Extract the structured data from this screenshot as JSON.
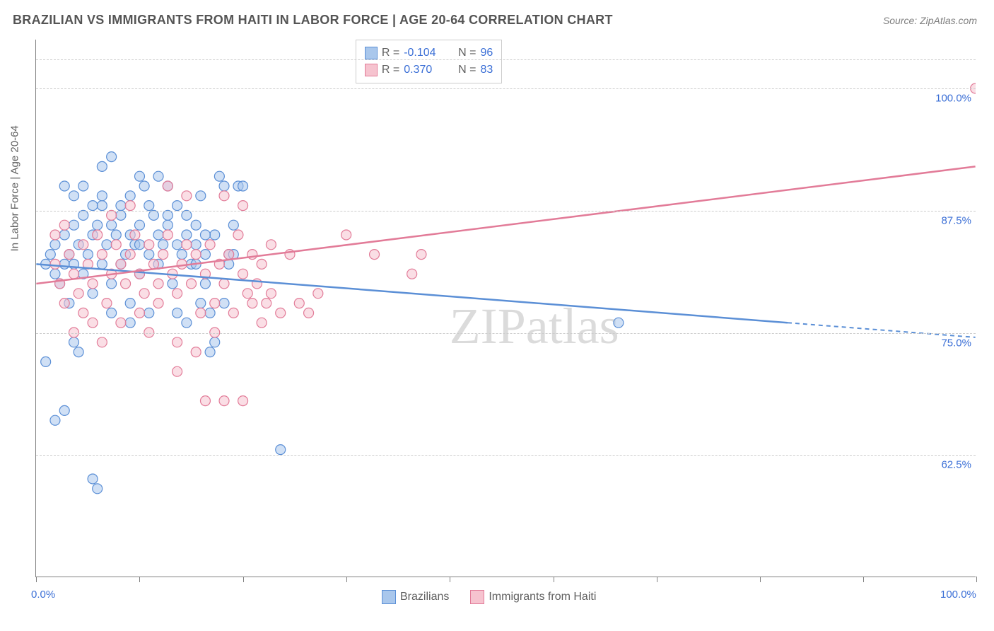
{
  "title": "BRAZILIAN VS IMMIGRANTS FROM HAITI IN LABOR FORCE | AGE 20-64 CORRELATION CHART",
  "source": "Source: ZipAtlas.com",
  "watermark": "ZIPatlas",
  "y_axis_label": "In Labor Force | Age 20-64",
  "series": [
    {
      "name": "Brazilians",
      "fill": "#a9c7ec",
      "stroke": "#5b8fd6",
      "r_value": "-0.104",
      "n_value": "96"
    },
    {
      "name": "Immigrants from Haiti",
      "fill": "#f6c3cf",
      "stroke": "#e27b98",
      "r_value": "0.370",
      "n_value": "83"
    }
  ],
  "x_range": [
    0,
    100
  ],
  "y_range": [
    50,
    105
  ],
  "y_ticks": [
    {
      "v": 62.5,
      "label": "62.5%"
    },
    {
      "v": 75.0,
      "label": "75.0%"
    },
    {
      "v": 87.5,
      "label": "87.5%"
    },
    {
      "v": 100.0,
      "label": "100.0%"
    }
  ],
  "y_grid_top": 103,
  "x_ticks_pct": [
    0,
    11,
    22,
    33,
    44,
    55,
    66,
    77,
    88,
    100
  ],
  "x_end_labels": {
    "min": "0.0%",
    "max": "100.0%"
  },
  "trend_lines": [
    {
      "series": 0,
      "x1": 0,
      "y1": 82.0,
      "x2_solid": 80,
      "y2_solid": 76.0,
      "x2": 100,
      "y2": 74.5
    },
    {
      "series": 1,
      "x1": 0,
      "y1": 80.0,
      "x2_solid": 100,
      "y2_solid": 92.0,
      "x2": 100,
      "y2": 92.0
    }
  ],
  "marker_radius": 7,
  "marker_opacity": 0.55,
  "points_blue": [
    [
      1,
      82
    ],
    [
      1.5,
      83
    ],
    [
      2,
      81
    ],
    [
      2,
      84
    ],
    [
      2.5,
      80
    ],
    [
      3,
      82
    ],
    [
      3,
      85
    ],
    [
      3.5,
      83
    ],
    [
      3.5,
      78
    ],
    [
      4,
      86
    ],
    [
      4,
      82
    ],
    [
      4.5,
      84
    ],
    [
      5,
      81
    ],
    [
      5,
      87
    ],
    [
      5.5,
      83
    ],
    [
      6,
      85
    ],
    [
      6,
      79
    ],
    [
      6.5,
      86
    ],
    [
      7,
      82
    ],
    [
      7,
      88
    ],
    [
      7.5,
      84
    ],
    [
      8,
      80
    ],
    [
      8,
      93
    ],
    [
      8.5,
      85
    ],
    [
      9,
      82
    ],
    [
      9,
      87
    ],
    [
      9.5,
      83
    ],
    [
      10,
      89
    ],
    [
      10,
      78
    ],
    [
      10.5,
      84
    ],
    [
      11,
      86
    ],
    [
      11,
      81
    ],
    [
      11.5,
      90
    ],
    [
      12,
      83
    ],
    [
      12.5,
      87
    ],
    [
      13,
      82
    ],
    [
      13,
      91
    ],
    [
      13.5,
      84
    ],
    [
      14,
      86
    ],
    [
      14.5,
      80
    ],
    [
      15,
      88
    ],
    [
      15.5,
      83
    ],
    [
      16,
      85
    ],
    [
      16.5,
      82
    ],
    [
      17,
      86
    ],
    [
      17.5,
      89
    ],
    [
      18,
      83
    ],
    [
      18.5,
      77
    ],
    [
      19,
      85
    ],
    [
      19.5,
      91
    ],
    [
      20,
      78
    ],
    [
      20.5,
      83
    ],
    [
      21,
      86
    ],
    [
      21.5,
      90
    ],
    [
      7,
      92
    ],
    [
      1,
      72
    ],
    [
      2,
      66
    ],
    [
      3,
      67
    ],
    [
      4,
      74
    ],
    [
      4.5,
      73
    ],
    [
      6,
      60
    ],
    [
      6.5,
      59
    ],
    [
      8,
      77
    ],
    [
      10,
      76
    ],
    [
      11,
      91
    ],
    [
      12,
      77
    ],
    [
      14,
      90
    ],
    [
      15,
      77
    ],
    [
      16,
      76
    ],
    [
      17,
      84
    ],
    [
      17.5,
      78
    ],
    [
      18,
      80
    ],
    [
      18.5,
      73
    ],
    [
      19,
      74
    ],
    [
      20,
      90
    ],
    [
      20.5,
      82
    ],
    [
      21,
      83
    ],
    [
      26,
      63
    ],
    [
      62,
      76
    ],
    [
      22,
      90
    ],
    [
      3,
      90
    ],
    [
      4,
      89
    ],
    [
      5,
      90
    ],
    [
      6,
      88
    ],
    [
      7,
      89
    ],
    [
      8,
      86
    ],
    [
      9,
      88
    ],
    [
      10,
      85
    ],
    [
      11,
      84
    ],
    [
      12,
      88
    ],
    [
      13,
      85
    ],
    [
      14,
      87
    ],
    [
      15,
      84
    ],
    [
      16,
      87
    ],
    [
      17,
      82
    ],
    [
      18,
      85
    ]
  ],
  "points_pink": [
    [
      2,
      82
    ],
    [
      2.5,
      80
    ],
    [
      3,
      78
    ],
    [
      3.5,
      83
    ],
    [
      4,
      81
    ],
    [
      4.5,
      79
    ],
    [
      5,
      84
    ],
    [
      5.5,
      82
    ],
    [
      6,
      80
    ],
    [
      6.5,
      85
    ],
    [
      7,
      83
    ],
    [
      7.5,
      78
    ],
    [
      8,
      81
    ],
    [
      8.5,
      84
    ],
    [
      9,
      82
    ],
    [
      9.5,
      80
    ],
    [
      10,
      83
    ],
    [
      10.5,
      85
    ],
    [
      11,
      81
    ],
    [
      11.5,
      79
    ],
    [
      12,
      84
    ],
    [
      12.5,
      82
    ],
    [
      13,
      80
    ],
    [
      13.5,
      83
    ],
    [
      14,
      85
    ],
    [
      14.5,
      81
    ],
    [
      15,
      79
    ],
    [
      15.5,
      82
    ],
    [
      16,
      84
    ],
    [
      16.5,
      80
    ],
    [
      17,
      83
    ],
    [
      17.5,
      77
    ],
    [
      18,
      81
    ],
    [
      18.5,
      84
    ],
    [
      19,
      78
    ],
    [
      19.5,
      82
    ],
    [
      20,
      80
    ],
    [
      20.5,
      83
    ],
    [
      21,
      77
    ],
    [
      21.5,
      85
    ],
    [
      22,
      81
    ],
    [
      22.5,
      79
    ],
    [
      23,
      83
    ],
    [
      23.5,
      80
    ],
    [
      24,
      82
    ],
    [
      24.5,
      78
    ],
    [
      25,
      84
    ],
    [
      14,
      90
    ],
    [
      15,
      71
    ],
    [
      16,
      89
    ],
    [
      10,
      88
    ],
    [
      11,
      77
    ],
    [
      12,
      75
    ],
    [
      13,
      78
    ],
    [
      8,
      87
    ],
    [
      9,
      76
    ],
    [
      7,
      74
    ],
    [
      6,
      76
    ],
    [
      5,
      77
    ],
    [
      4,
      75
    ],
    [
      3,
      86
    ],
    [
      2,
      85
    ],
    [
      15,
      74
    ],
    [
      17,
      73
    ],
    [
      18,
      68
    ],
    [
      19,
      75
    ],
    [
      20,
      68
    ],
    [
      22,
      68
    ],
    [
      23,
      78
    ],
    [
      22,
      88
    ],
    [
      24,
      76
    ],
    [
      25,
      79
    ],
    [
      26,
      77
    ],
    [
      27,
      83
    ],
    [
      28,
      78
    ],
    [
      29,
      77
    ],
    [
      30,
      79
    ],
    [
      33,
      85
    ],
    [
      36,
      83
    ],
    [
      40,
      81
    ],
    [
      41,
      83
    ],
    [
      100,
      100
    ],
    [
      20,
      89
    ]
  ]
}
